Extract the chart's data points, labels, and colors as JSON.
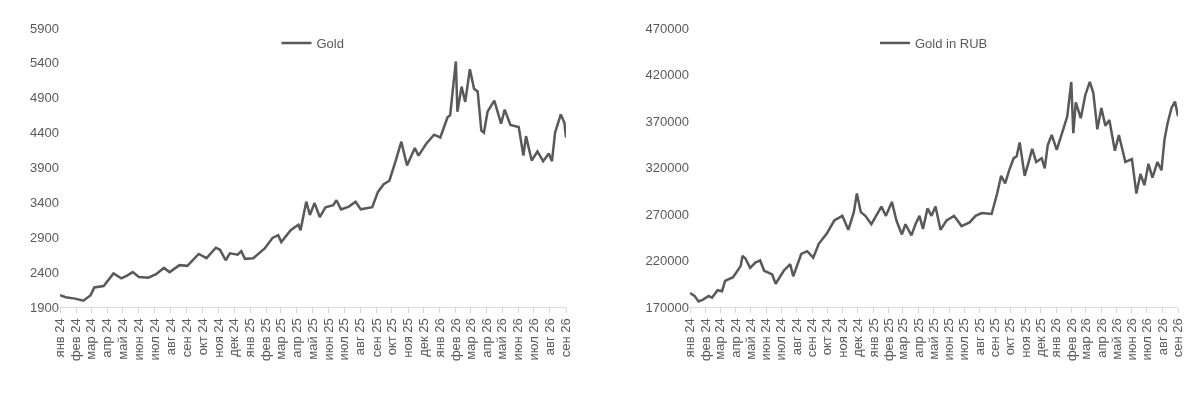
{
  "chart_data": [
    {
      "type": "line",
      "legend": "top",
      "grid": false,
      "marker": "none",
      "line_style": "solid",
      "x": [
        "2024-01-01",
        "2024-01-12",
        "2024-01-30",
        "2024-02-15",
        "2024-02-29",
        "2024-03-07",
        "2024-03-25",
        "2024-04-13",
        "2024-04-28",
        "2024-05-09",
        "2024-05-20",
        "2024-06-01",
        "2024-06-19",
        "2024-07-04",
        "2024-07-19",
        "2024-07-30",
        "2024-08-18",
        "2024-09-02",
        "2024-09-24",
        "2024-10-09",
        "2024-10-27",
        "2024-11-04",
        "2024-11-15",
        "2024-11-23",
        "2024-12-08",
        "2024-12-15",
        "2024-12-22",
        "2025-01-07",
        "2025-01-29",
        "2025-02-13",
        "2025-02-24",
        "2025-03-02",
        "2025-03-20",
        "2025-04-04",
        "2025-04-08",
        "2025-04-19",
        "2025-04-26",
        "2025-05-05",
        "2025-05-15",
        "2025-05-26",
        "2025-06-10",
        "2025-06-16",
        "2025-06-25",
        "2025-07-10",
        "2025-07-23",
        "2025-08-02",
        "2025-08-24",
        "2025-09-04",
        "2025-09-15",
        "2025-09-26",
        "2025-10-08",
        "2025-10-19",
        "2025-10-30",
        "2025-11-14",
        "2025-11-21",
        "2025-12-06",
        "2025-12-21",
        "2026-01-02",
        "2026-01-16",
        "2026-01-21",
        "2026-02-01",
        "2026-02-04",
        "2026-02-12",
        "2026-02-19",
        "2026-02-28",
        "2026-03-08",
        "2026-03-15",
        "2026-03-22",
        "2026-03-27",
        "2026-04-03",
        "2026-04-16",
        "2026-04-29",
        "2026-05-06",
        "2026-05-17",
        "2026-06-02",
        "2026-06-11",
        "2026-06-16",
        "2026-06-27",
        "2026-07-08",
        "2026-07-19",
        "2026-07-30",
        "2026-08-05",
        "2026-08-11",
        "2026-08-22",
        "2026-08-29",
        "2026-09-01"
      ],
      "series": [
        {
          "name": "Gold",
          "color": "#595959",
          "values": [
            2070,
            2040,
            2020,
            1990,
            2070,
            2180,
            2200,
            2380,
            2310,
            2350,
            2400,
            2330,
            2320,
            2370,
            2460,
            2400,
            2500,
            2490,
            2660,
            2600,
            2750,
            2720,
            2570,
            2670,
            2650,
            2700,
            2590,
            2600,
            2740,
            2890,
            2930,
            2830,
            3000,
            3080,
            3000,
            3410,
            3220,
            3390,
            3190,
            3330,
            3360,
            3430,
            3300,
            3340,
            3410,
            3300,
            3330,
            3550,
            3660,
            3710,
            3990,
            4270,
            3930,
            4180,
            4070,
            4240,
            4370,
            4330,
            4620,
            4650,
            5420,
            4700,
            5060,
            4840,
            5310,
            5030,
            4990,
            4430,
            4400,
            4700,
            4860,
            4530,
            4730,
            4510,
            4480,
            4070,
            4350,
            4000,
            4130,
            3990,
            4100,
            3990,
            4400,
            4660,
            4540,
            4330
          ]
        }
      ],
      "xlim": [
        "2024-01-01",
        "2026-09-01"
      ],
      "xticks": [
        {
          "value": "2024-01-01",
          "label": "янв 24"
        },
        {
          "value": "2024-02-01",
          "label": "фев 24"
        },
        {
          "value": "2024-03-01",
          "label": "мар 24"
        },
        {
          "value": "2024-04-01",
          "label": "апр 24"
        },
        {
          "value": "2024-05-01",
          "label": "май 24"
        },
        {
          "value": "2024-06-01",
          "label": "июн 24"
        },
        {
          "value": "2024-07-01",
          "label": "июл 24"
        },
        {
          "value": "2024-08-01",
          "label": "авг 24"
        },
        {
          "value": "2024-09-01",
          "label": "сен 24"
        },
        {
          "value": "2024-10-01",
          "label": "окт 24"
        },
        {
          "value": "2024-11-01",
          "label": "ноя 24"
        },
        {
          "value": "2024-12-01",
          "label": "дек 24"
        },
        {
          "value": "2025-01-01",
          "label": "янв 25"
        },
        {
          "value": "2025-02-01",
          "label": "фев 25"
        },
        {
          "value": "2025-03-01",
          "label": "мар 25"
        },
        {
          "value": "2025-04-01",
          "label": "апр 25"
        },
        {
          "value": "2025-05-01",
          "label": "май 25"
        },
        {
          "value": "2025-06-01",
          "label": "июн 25"
        },
        {
          "value": "2025-07-01",
          "label": "июл 25"
        },
        {
          "value": "2025-08-01",
          "label": "авг 25"
        },
        {
          "value": "2025-09-01",
          "label": "сен 25"
        },
        {
          "value": "2025-10-01",
          "label": "окт 25"
        },
        {
          "value": "2025-11-01",
          "label": "ноя 25"
        },
        {
          "value": "2025-12-01",
          "label": "дек 25"
        },
        {
          "value": "2026-01-01",
          "label": "янв 26"
        },
        {
          "value": "2026-02-01",
          "label": "фев 26"
        },
        {
          "value": "2026-03-01",
          "label": "мар 26"
        },
        {
          "value": "2026-04-01",
          "label": "апр 26"
        },
        {
          "value": "2026-05-01",
          "label": "май 26"
        },
        {
          "value": "2026-06-01",
          "label": "июн 26"
        },
        {
          "value": "2026-07-01",
          "label": "июл 26"
        },
        {
          "value": "2026-08-01",
          "label": "авг 26"
        },
        {
          "value": "2026-09-01",
          "label": "сен 26"
        }
      ],
      "ylim": [
        1900,
        5900
      ],
      "yticks": [
        1900,
        2400,
        2900,
        3400,
        3900,
        4400,
        4900,
        5400,
        5900
      ]
    },
    {
      "type": "line",
      "legend": "top",
      "grid": false,
      "marker": "none",
      "line_style": "solid",
      "x": [
        "2024-01-01",
        "2024-01-10",
        "2024-01-18",
        "2024-01-27",
        "2024-02-07",
        "2024-02-14",
        "2024-02-25",
        "2024-03-05",
        "2024-03-11",
        "2024-03-27",
        "2024-04-11",
        "2024-04-15",
        "2024-04-21",
        "2024-04-30",
        "2024-05-11",
        "2024-05-20",
        "2024-05-28",
        "2024-06-13",
        "2024-06-20",
        "2024-07-06",
        "2024-07-19",
        "2024-07-25",
        "2024-08-10",
        "2024-08-22",
        "2024-09-03",
        "2024-09-14",
        "2024-09-30",
        "2024-10-15",
        "2024-10-31",
        "2024-11-12",
        "2024-11-23",
        "2024-11-29",
        "2024-12-07",
        "2024-12-16",
        "2024-12-28",
        "2025-01-17",
        "2025-01-26",
        "2025-02-07",
        "2025-02-16",
        "2025-02-27",
        "2025-03-06",
        "2025-03-18",
        "2025-03-26",
        "2025-04-03",
        "2025-04-10",
        "2025-04-19",
        "2025-04-27",
        "2025-05-05",
        "2025-05-15",
        "2025-05-27",
        "2025-06-11",
        "2025-06-26",
        "2025-07-12",
        "2025-07-24",
        "2025-08-05",
        "2025-08-25",
        "2025-09-05",
        "2025-09-13",
        "2025-09-21",
        "2025-09-29",
        "2025-10-08",
        "2025-10-14",
        "2025-10-20",
        "2025-10-30",
        "2025-11-07",
        "2025-11-14",
        "2025-11-22",
        "2025-12-03",
        "2025-12-09",
        "2025-12-15",
        "2025-12-23",
        "2026-01-02",
        "2026-01-16",
        "2026-01-23",
        "2026-01-31",
        "2026-02-04",
        "2026-02-09",
        "2026-02-19",
        "2026-02-28",
        "2026-03-09",
        "2026-03-16",
        "2026-03-24",
        "2026-04-01",
        "2026-04-09",
        "2026-04-17",
        "2026-04-28",
        "2026-05-06",
        "2026-05-19",
        "2026-06-01",
        "2026-06-10",
        "2026-06-18",
        "2026-06-26",
        "2026-07-04",
        "2026-07-12",
        "2026-07-22",
        "2026-07-30",
        "2026-08-05",
        "2026-08-11",
        "2026-08-19",
        "2026-08-26",
        "2026-09-01"
      ],
      "series": [
        {
          "name": "Gold in RUB",
          "color": "#595959",
          "values": [
            185000,
            182000,
            176000,
            178000,
            182000,
            180000,
            188000,
            187000,
            198000,
            202000,
            214000,
            225000,
            222000,
            212000,
            218000,
            220000,
            209000,
            205000,
            195000,
            209000,
            216000,
            203000,
            227000,
            230000,
            223000,
            238000,
            249000,
            263000,
            268000,
            253000,
            272000,
            292000,
            272000,
            268000,
            259000,
            278000,
            268000,
            283000,
            263000,
            248000,
            259000,
            247000,
            259000,
            268000,
            254000,
            276000,
            268000,
            278000,
            253000,
            263000,
            268000,
            257000,
            261000,
            268000,
            271000,
            270000,
            292000,
            311000,
            303000,
            317000,
            330000,
            332000,
            347000,
            311000,
            326000,
            340000,
            326000,
            330000,
            319000,
            344000,
            355000,
            339000,
            363000,
            375000,
            412000,
            357000,
            390000,
            373000,
            398000,
            412000,
            400000,
            361000,
            384000,
            365000,
            371000,
            338000,
            355000,
            326000,
            329000,
            292000,
            313000,
            301000,
            324000,
            309000,
            326000,
            317000,
            350000,
            367000,
            384000,
            391000,
            375000
          ]
        }
      ],
      "xlim": [
        "2024-01-01",
        "2026-09-01"
      ],
      "xticks": [
        {
          "value": "2024-01-01",
          "label": "янв 24"
        },
        {
          "value": "2024-02-01",
          "label": "фев 24"
        },
        {
          "value": "2024-03-01",
          "label": "мар 24"
        },
        {
          "value": "2024-04-01",
          "label": "апр 24"
        },
        {
          "value": "2024-05-01",
          "label": "май 24"
        },
        {
          "value": "2024-06-01",
          "label": "июн 24"
        },
        {
          "value": "2024-07-01",
          "label": "июл 24"
        },
        {
          "value": "2024-08-01",
          "label": "авг 24"
        },
        {
          "value": "2024-09-01",
          "label": "сен 24"
        },
        {
          "value": "2024-10-01",
          "label": "окт 24"
        },
        {
          "value": "2024-11-01",
          "label": "ноя 24"
        },
        {
          "value": "2024-12-01",
          "label": "дек 24"
        },
        {
          "value": "2025-01-01",
          "label": "янв 25"
        },
        {
          "value": "2025-02-01",
          "label": "фев 25"
        },
        {
          "value": "2025-03-01",
          "label": "мар 25"
        },
        {
          "value": "2025-04-01",
          "label": "апр 25"
        },
        {
          "value": "2025-05-01",
          "label": "май 25"
        },
        {
          "value": "2025-06-01",
          "label": "июн 25"
        },
        {
          "value": "2025-07-01",
          "label": "июл 25"
        },
        {
          "value": "2025-08-01",
          "label": "авг 25"
        },
        {
          "value": "2025-09-01",
          "label": "сен 25"
        },
        {
          "value": "2025-10-01",
          "label": "окт 25"
        },
        {
          "value": "2025-11-01",
          "label": "ноя 25"
        },
        {
          "value": "2025-12-01",
          "label": "дек 25"
        },
        {
          "value": "2026-01-01",
          "label": "янв 26"
        },
        {
          "value": "2026-02-01",
          "label": "фев 26"
        },
        {
          "value": "2026-03-01",
          "label": "мар 26"
        },
        {
          "value": "2026-04-01",
          "label": "апр 26"
        },
        {
          "value": "2026-05-01",
          "label": "май 26"
        },
        {
          "value": "2026-06-01",
          "label": "июн 26"
        },
        {
          "value": "2026-07-01",
          "label": "июл 26"
        },
        {
          "value": "2026-08-01",
          "label": "авг 26"
        },
        {
          "value": "2026-09-01",
          "label": "сен 26"
        }
      ],
      "ylim": [
        170000,
        470000
      ],
      "yticks": [
        170000,
        220000,
        270000,
        320000,
        370000,
        420000,
        470000
      ]
    }
  ]
}
